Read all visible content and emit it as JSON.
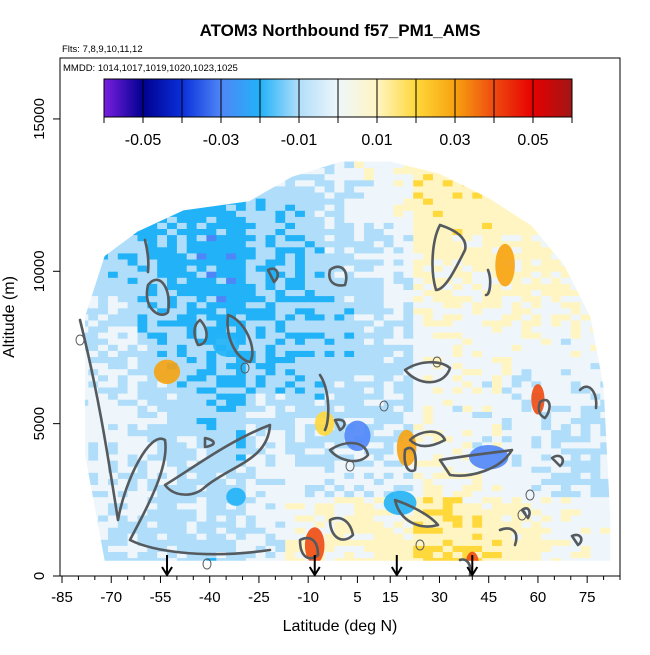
{
  "chart_data": {
    "type": "heatmap",
    "title": "ATOM3 Northbound f57_PM1_AMS",
    "flights_note": "Flts: 7,8,9,10,11,12",
    "dates_note": "MMDD: 1014,1017,1019,1020,1023,1025",
    "xlabel": "Latitude (deg N)",
    "ylabel": "Altitude (m)",
    "xlim": [
      -85,
      85
    ],
    "ylim": [
      0,
      17000
    ],
    "x_ticks": [
      -85,
      -70,
      -55,
      -40,
      -25,
      -10,
      5,
      15,
      30,
      45,
      60,
      75
    ],
    "y_ticks": [
      0,
      5000,
      10000,
      15000
    ],
    "x_tick_labels": [
      "-85",
      "-70",
      "-55",
      "-40",
      "-25",
      "-10",
      "5",
      "15",
      "30",
      "45",
      "60",
      "75"
    ],
    "y_tick_labels": [
      "0",
      "5000",
      "10000",
      "15000"
    ],
    "colorbar": {
      "range": [
        -0.06,
        0.06
      ],
      "boundaries": [
        -0.06,
        -0.05,
        -0.04,
        -0.03,
        -0.02,
        -0.01,
        0.0,
        0.01,
        0.02,
        0.03,
        0.04,
        0.05,
        0.06
      ],
      "labels": [
        "-0.05",
        "-0.03",
        "-0.01",
        "0.01",
        "0.03",
        "0.05"
      ],
      "label_values": [
        -0.05,
        -0.03,
        -0.01,
        0.01,
        0.03,
        0.05
      ],
      "colors": [
        "#7a1fe0",
        "#00008f",
        "#0a2fd9",
        "#4f86f7",
        "#22b2f7",
        "#b0defa",
        "#eef6fb",
        "#fff5c2",
        "#ffd83b",
        "#f7a20f",
        "#ee4b10",
        "#e60000",
        "#a11616"
      ]
    },
    "coverage": [
      [
        -78,
        8500
      ],
      [
        -72,
        10500
      ],
      [
        -62,
        11300
      ],
      [
        -48,
        12000
      ],
      [
        -28,
        12300
      ],
      [
        -15,
        13100
      ],
      [
        0,
        13600
      ],
      [
        15,
        13600
      ],
      [
        30,
        13200
      ],
      [
        45,
        12400
      ],
      [
        58,
        11500
      ],
      [
        68,
        10200
      ],
      [
        76,
        8500
      ],
      [
        80,
        6200
      ],
      [
        82,
        2000
      ],
      [
        82,
        500
      ],
      [
        -72,
        500
      ],
      [
        -78,
        4000
      ]
    ],
    "arrows_lat": [
      -53,
      -8,
      17,
      40
    ],
    "contour_levels": [
      -0.01,
      0.01
    ],
    "colors": {
      "contour": "#555a5e",
      "background": "#ffffff",
      "frame": "#000000"
    }
  }
}
